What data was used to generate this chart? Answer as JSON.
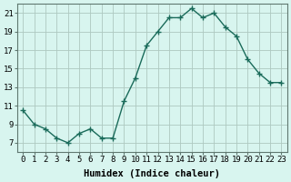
{
  "x": [
    0,
    1,
    2,
    3,
    4,
    5,
    6,
    7,
    8,
    9,
    10,
    11,
    12,
    13,
    14,
    15,
    16,
    17,
    18,
    19,
    20,
    21,
    22,
    23
  ],
  "y": [
    10.5,
    9.0,
    8.5,
    7.5,
    7.0,
    8.0,
    8.5,
    7.5,
    7.5,
    11.5,
    14.0,
    17.5,
    19.0,
    20.5,
    20.5,
    21.5,
    20.5,
    21.0,
    19.5,
    18.5,
    16.0,
    14.5,
    13.5,
    13.5
  ],
  "line_color": "#1a6b5a",
  "marker": "+",
  "marker_size": 4,
  "bg_color": "#d8f5ef",
  "grid_color": "#adc8c0",
  "xlabel": "Humidex (Indice chaleur)",
  "ylim": [
    6,
    22
  ],
  "xlim": [
    -0.5,
    23.5
  ],
  "yticks": [
    7,
    9,
    11,
    13,
    15,
    17,
    19,
    21
  ],
  "xticks": [
    0,
    1,
    2,
    3,
    4,
    5,
    6,
    7,
    8,
    9,
    10,
    11,
    12,
    13,
    14,
    15,
    16,
    17,
    18,
    19,
    20,
    21,
    22,
    23
  ],
  "xlabel_fontsize": 7.5,
  "tick_fontsize": 6.5,
  "line_width": 1.0,
  "marker_color": "#1a6b5a"
}
